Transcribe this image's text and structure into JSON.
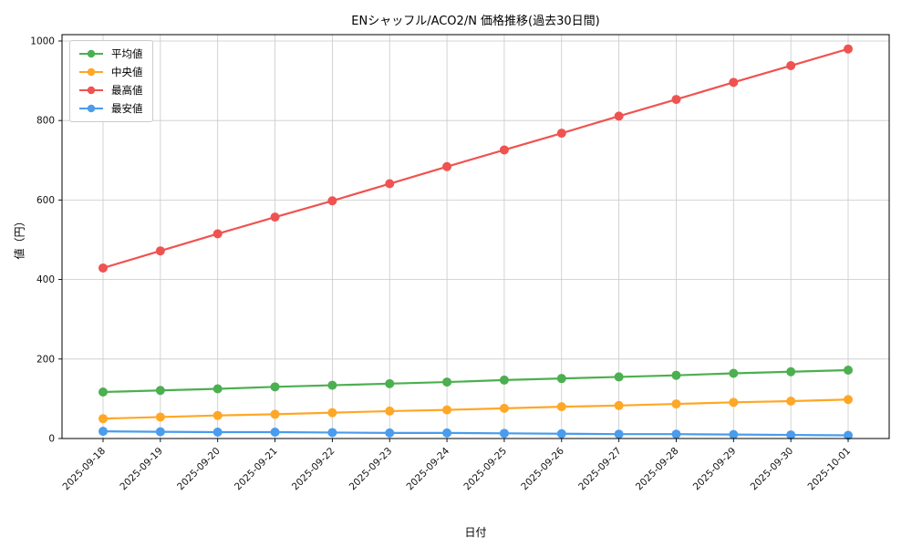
{
  "chart_data": {
    "type": "line",
    "title": "ENシャッフル/ACO2/N 価格推移(過去30日間)",
    "xlabel": "日付",
    "ylabel": "値（円）",
    "ylim": [
      0,
      1016
    ],
    "yticks": [
      0,
      200,
      400,
      600,
      800,
      1000
    ],
    "grid": true,
    "legend_position": "upper left",
    "xtick_rotation": 45,
    "categories": [
      "2025-09-18",
      "2025-09-19",
      "2025-09-20",
      "2025-09-21",
      "2025-09-22",
      "2025-09-23",
      "2025-09-24",
      "2025-09-25",
      "2025-09-26",
      "2025-09-27",
      "2025-09-28",
      "2025-09-29",
      "2025-09-30",
      "2025-10-01"
    ],
    "series": [
      {
        "id": "average",
        "name": "平均値",
        "color": "#4caf50",
        "values": [
          117,
          121,
          125,
          130,
          134,
          138,
          142,
          147,
          151,
          155,
          159,
          164,
          168,
          172
        ]
      },
      {
        "id": "median",
        "name": "中央値",
        "color": "#ffa726",
        "values": [
          50,
          54,
          58,
          61,
          65,
          69,
          72,
          76,
          80,
          83,
          87,
          91,
          94,
          98
        ]
      },
      {
        "id": "max",
        "name": "最高値",
        "color": "#ef5350",
        "values": [
          429,
          472,
          515,
          557,
          598,
          641,
          684,
          726,
          768,
          811,
          853,
          896,
          938,
          980
        ]
      },
      {
        "id": "min",
        "name": "最安値",
        "color": "#4a9cec",
        "values": [
          18,
          17,
          16,
          16,
          15,
          14,
          14,
          13,
          12,
          11,
          11,
          10,
          9,
          8
        ]
      }
    ]
  }
}
